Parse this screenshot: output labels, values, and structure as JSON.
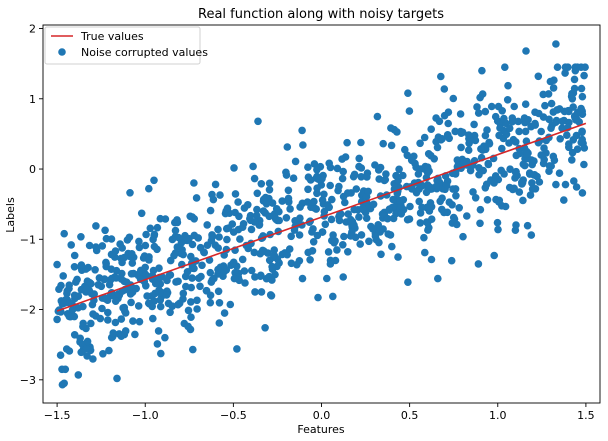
{
  "chart_data": {
    "type": "scatter",
    "title": "Real function along with noisy targets",
    "xlabel": "Features",
    "ylabel": "Labels",
    "xlim": [
      -1.58,
      1.58
    ],
    "ylim": [
      -3.33,
      2.05
    ],
    "x_ticks": [
      -1.5,
      -1.0,
      -0.5,
      0.0,
      0.5,
      1.0,
      1.5
    ],
    "x_tick_labels": [
      "−1.5",
      "−1.0",
      "−0.5",
      "0.0",
      "0.5",
      "1.0",
      "1.5"
    ],
    "y_ticks": [
      -3,
      -2,
      -1,
      0,
      1,
      2
    ],
    "y_tick_labels": [
      "−3",
      "−2",
      "−1",
      "0",
      "1",
      "2"
    ],
    "grid": false,
    "legend_position": "top-left",
    "series": [
      {
        "name": "True values",
        "kind": "line",
        "color": "#d62728",
        "x": [
          -1.5,
          1.5
        ],
        "y": [
          -2.02,
          0.65
        ]
      },
      {
        "name": "Noise corrupted values",
        "kind": "scatter",
        "color": "#1f77b4",
        "sample_points": [
          [
            -1.47,
            -3.07
          ],
          [
            -1.46,
            -3.05
          ],
          [
            -1.38,
            -2.93
          ],
          [
            -1.16,
            -2.98
          ],
          [
            1.33,
            1.78
          ],
          [
            1.16,
            1.68
          ],
          [
            1.04,
            1.45
          ],
          [
            0.91,
            1.4
          ],
          [
            1.23,
            1.32
          ],
          [
            1.49,
            1.33
          ],
          [
            1.44,
            1.4
          ],
          [
            0.49,
            1.08
          ],
          [
            -0.36,
            0.68
          ],
          [
            -0.11,
            0.55
          ],
          [
            -0.55,
            -2.05
          ],
          [
            -0.32,
            -2.26
          ],
          [
            -0.48,
            -2.56
          ],
          [
            -0.73,
            -2.57
          ],
          [
            0.98,
            -1.23
          ],
          [
            0.89,
            -1.35
          ],
          [
            1.1,
            -0.87
          ],
          [
            1.19,
            -0.94
          ],
          [
            0.49,
            -1.61
          ],
          [
            0.66,
            -1.56
          ],
          [
            -0.02,
            -1.83
          ],
          [
            -1.02,
            -0.63
          ],
          [
            -0.98,
            -0.28
          ],
          [
            -0.95,
            -0.16
          ],
          [
            -1.28,
            -0.81
          ],
          [
            -1.46,
            -0.92
          ],
          [
            1.48,
            1.03
          ],
          [
            1.4,
            0.83
          ],
          [
            1.29,
            0.45
          ],
          [
            1.35,
            -0.06
          ],
          [
            1.48,
            -0.34
          ],
          [
            1.42,
            0.13
          ],
          [
            -1.44,
            -2.06
          ],
          [
            -1.43,
            -2.59
          ],
          [
            -1.48,
            -2.65
          ],
          [
            -1.5,
            -1.36
          ],
          [
            -1.49,
            -1.71
          ],
          [
            -1.45,
            -1.86
          ],
          [
            -1.47,
            -1.92
          ],
          [
            -1.5,
            -2.14
          ],
          [
            -1.4,
            -2.36
          ],
          [
            -1.37,
            -2.46
          ],
          [
            -1.33,
            -2.66
          ],
          [
            -1.31,
            -2.58
          ],
          [
            -1.24,
            -2.63
          ],
          [
            -1.42,
            -1.08
          ],
          [
            -1.4,
            -1.23
          ],
          [
            -1.36,
            -1.44
          ],
          [
            -1.33,
            -1.69
          ],
          [
            -1.3,
            -1.93
          ],
          [
            -1.28,
            -1.11
          ],
          [
            -1.26,
            -1.55
          ]
        ]
      }
    ]
  }
}
